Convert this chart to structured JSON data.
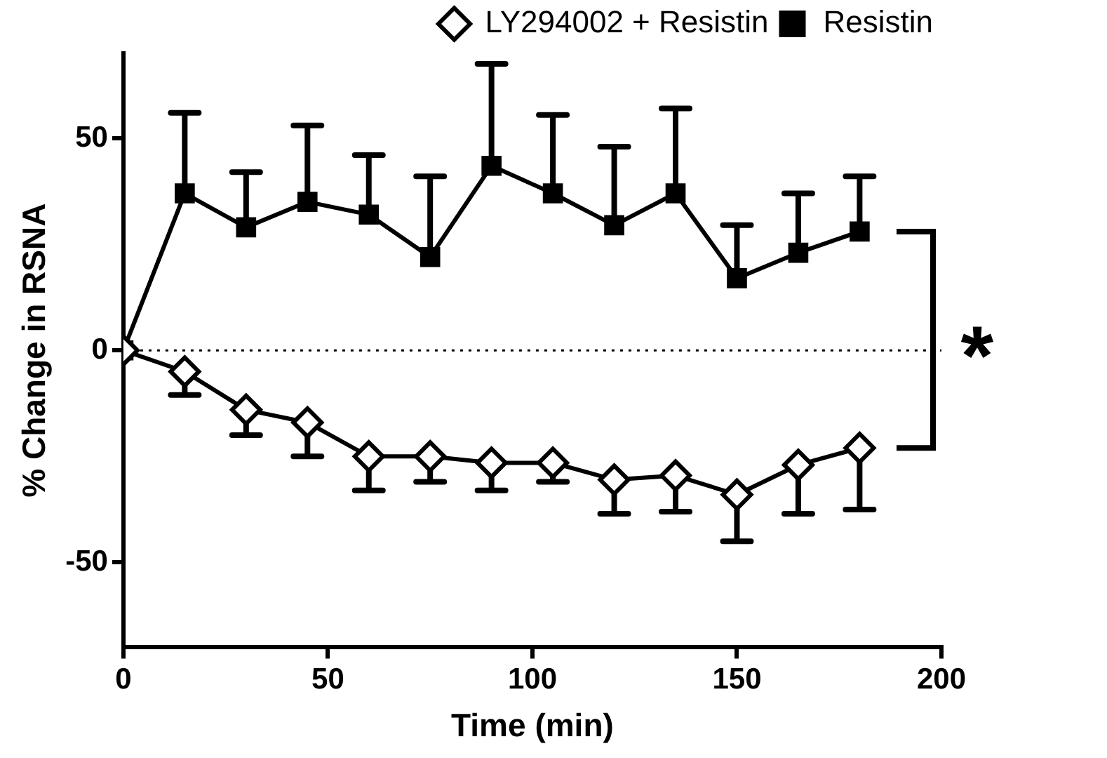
{
  "chart_data": {
    "type": "line",
    "xlabel": "Time (min)",
    "ylabel": "% Change in RSNA",
    "x": [
      0,
      15,
      30,
      45,
      60,
      75,
      90,
      105,
      120,
      135,
      150,
      165,
      180
    ],
    "series": [
      {
        "name": "LY294002 + Resistin",
        "color": "#000000",
        "marker": "diamond",
        "values": [
          0,
          -5,
          -14,
          -17,
          -25,
          -25,
          -26.5,
          -26.5,
          -30.5,
          -29.5,
          -34,
          -27,
          -23
        ],
        "errors": [
          null,
          [
            -10.5,
            -5
          ],
          [
            -20,
            -14
          ],
          [
            -25,
            -17
          ],
          [
            -33,
            -25
          ],
          [
            -31,
            -25
          ],
          [
            -33,
            -26.5
          ],
          [
            -31,
            -26.5
          ],
          [
            -38.5,
            -30.5
          ],
          [
            -38,
            -29.5
          ],
          [
            -45,
            -34
          ],
          [
            -38.5,
            -27
          ],
          [
            -37.5,
            -23
          ]
        ]
      },
      {
        "name": "Resistin",
        "color": "#000000",
        "marker": "square",
        "values": [
          0,
          37,
          29,
          35,
          32,
          22,
          43.5,
          37,
          29.5,
          37,
          17,
          23,
          28
        ],
        "errors": [
          null,
          [
            37,
            56
          ],
          [
            29,
            42
          ],
          [
            35,
            53
          ],
          [
            32,
            46
          ],
          [
            22,
            41
          ],
          [
            43.5,
            67.5
          ],
          [
            37,
            55.5
          ],
          [
            29.5,
            48
          ],
          [
            37,
            57
          ],
          [
            17,
            29.5
          ],
          [
            23,
            37
          ],
          [
            28,
            41
          ]
        ]
      }
    ],
    "xlim": [
      0,
      200
    ],
    "xticks": [
      0,
      50,
      100,
      150,
      200
    ],
    "ylim": [
      -70,
      70
    ],
    "yticks": [
      -50,
      0,
      50
    ],
    "ref_lines": [
      {
        "axis": "y",
        "value": 0,
        "line_style": "dotted",
        "color": "#000000"
      }
    ],
    "annotations": [
      "*"
    ],
    "legend": "top right",
    "grid": false
  }
}
